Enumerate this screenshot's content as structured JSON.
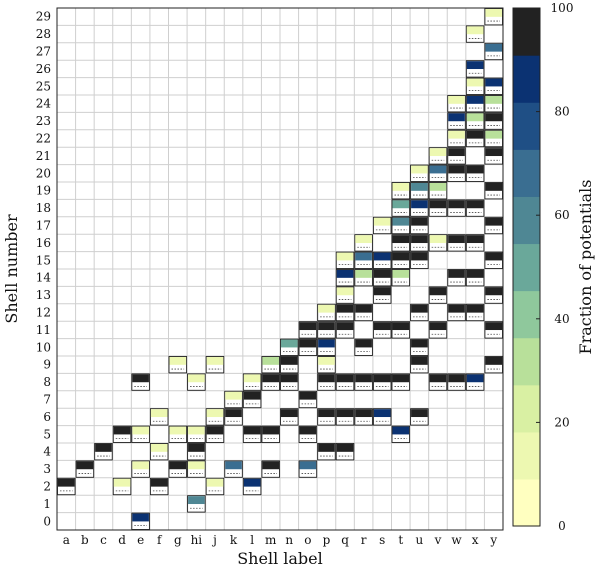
{
  "chart_data": {
    "type": "heatmap",
    "title": "",
    "xlabel": "Shell label",
    "ylabel": "Shell number",
    "colorbar_label": "Fraction of potentials",
    "colorbar_range": [
      0,
      100
    ],
    "colorbar_ticks": [
      0,
      20,
      40,
      60,
      80,
      100
    ],
    "colormap": [
      "#ffffc0",
      "#edf8b1",
      "#d9f0a3",
      "#b8e09a",
      "#8fc89c",
      "#6aa89a",
      "#4f8794",
      "#3a6e91",
      "#1f4f85",
      "#0b3272",
      "#222222"
    ],
    "x_categories": [
      "a",
      "b",
      "c",
      "d",
      "e",
      "f",
      "g",
      "hi",
      "j",
      "k",
      "l",
      "m",
      "n",
      "o",
      "p",
      "q",
      "r",
      "s",
      "t",
      "u",
      "v",
      "w",
      "x",
      "y"
    ],
    "y_categories": [
      "0",
      "1",
      "2",
      "3",
      "4",
      "5",
      "6",
      "7",
      "8",
      "9",
      "10",
      "11",
      "12",
      "13",
      "14",
      "15",
      "16",
      "17",
      "18",
      "19",
      "20",
      "21",
      "22",
      "23",
      "24",
      "25",
      "26",
      "27",
      "28",
      "29"
    ],
    "grid": true,
    "cells": [
      {
        "x": "a",
        "y": "2",
        "value": 100
      },
      {
        "x": "b",
        "y": "3",
        "value": 100
      },
      {
        "x": "c",
        "y": "4",
        "value": 100
      },
      {
        "x": "d",
        "y": "2",
        "value": 8
      },
      {
        "x": "d",
        "y": "5",
        "value": 100
      },
      {
        "x": "e",
        "y": "0",
        "value": 85
      },
      {
        "x": "e",
        "y": "3",
        "value": 6
      },
      {
        "x": "e",
        "y": "5",
        "value": 6
      },
      {
        "x": "e",
        "y": "8",
        "value": 100
      },
      {
        "x": "f",
        "y": "2",
        "value": 100
      },
      {
        "x": "f",
        "y": "4",
        "value": 6
      },
      {
        "x": "f",
        "y": "6",
        "value": 6
      },
      {
        "x": "g",
        "y": "3",
        "value": 100
      },
      {
        "x": "g",
        "y": "5",
        "value": 6
      },
      {
        "x": "g",
        "y": "9",
        "value": 6
      },
      {
        "x": "hi",
        "y": "1",
        "value": 62
      },
      {
        "x": "hi",
        "y": "3",
        "value": 6
      },
      {
        "x": "hi",
        "y": "4",
        "value": 100
      },
      {
        "x": "hi",
        "y": "5",
        "value": 8
      },
      {
        "x": "hi",
        "y": "8",
        "value": 6
      },
      {
        "x": "j",
        "y": "2",
        "value": 6
      },
      {
        "x": "j",
        "y": "5",
        "value": 100
      },
      {
        "x": "j",
        "y": "6",
        "value": 6
      },
      {
        "x": "j",
        "y": "9",
        "value": 6
      },
      {
        "x": "k",
        "y": "3",
        "value": 68
      },
      {
        "x": "k",
        "y": "6",
        "value": 100
      },
      {
        "x": "k",
        "y": "7",
        "value": 6
      },
      {
        "x": "l",
        "y": "2",
        "value": 85
      },
      {
        "x": "l",
        "y": "5",
        "value": 100
      },
      {
        "x": "l",
        "y": "7",
        "value": 100
      },
      {
        "x": "l",
        "y": "8",
        "value": 8
      },
      {
        "x": "m",
        "y": "3",
        "value": 100
      },
      {
        "x": "m",
        "y": "5",
        "value": 100
      },
      {
        "x": "m",
        "y": "8",
        "value": 100
      },
      {
        "x": "m",
        "y": "9",
        "value": 30
      },
      {
        "x": "n",
        "y": "6",
        "value": 100
      },
      {
        "x": "n",
        "y": "8",
        "value": 100
      },
      {
        "x": "n",
        "y": "9",
        "value": 100
      },
      {
        "x": "n",
        "y": "10",
        "value": 45
      },
      {
        "x": "o",
        "y": "3",
        "value": 68
      },
      {
        "x": "o",
        "y": "5",
        "value": 100
      },
      {
        "x": "o",
        "y": "7",
        "value": 100
      },
      {
        "x": "o",
        "y": "10",
        "value": 100
      },
      {
        "x": "o",
        "y": "11",
        "value": 100
      },
      {
        "x": "p",
        "y": "4",
        "value": 100
      },
      {
        "x": "p",
        "y": "6",
        "value": 100
      },
      {
        "x": "p",
        "y": "8",
        "value": 100
      },
      {
        "x": "p",
        "y": "9",
        "value": 8
      },
      {
        "x": "p",
        "y": "10",
        "value": 85
      },
      {
        "x": "p",
        "y": "11",
        "value": 100
      },
      {
        "x": "p",
        "y": "12",
        "value": 8
      },
      {
        "x": "q",
        "y": "4",
        "value": 100
      },
      {
        "x": "q",
        "y": "6",
        "value": 100
      },
      {
        "x": "q",
        "y": "8",
        "value": 100
      },
      {
        "x": "q",
        "y": "11",
        "value": 100
      },
      {
        "x": "q",
        "y": "12",
        "value": 100
      },
      {
        "x": "q",
        "y": "13",
        "value": 8
      },
      {
        "x": "q",
        "y": "14",
        "value": 88
      },
      {
        "x": "q",
        "y": "15",
        "value": 8
      },
      {
        "x": "r",
        "y": "6",
        "value": 100
      },
      {
        "x": "r",
        "y": "8",
        "value": 100
      },
      {
        "x": "r",
        "y": "10",
        "value": 100
      },
      {
        "x": "r",
        "y": "12",
        "value": 100
      },
      {
        "x": "r",
        "y": "14",
        "value": 30
      },
      {
        "x": "r",
        "y": "15",
        "value": 68
      },
      {
        "x": "r",
        "y": "16",
        "value": 8
      },
      {
        "x": "s",
        "y": "6",
        "value": 85
      },
      {
        "x": "s",
        "y": "8",
        "value": 100
      },
      {
        "x": "s",
        "y": "11",
        "value": 100
      },
      {
        "x": "s",
        "y": "13",
        "value": 100
      },
      {
        "x": "s",
        "y": "14",
        "value": 100
      },
      {
        "x": "s",
        "y": "15",
        "value": 88
      },
      {
        "x": "s",
        "y": "17",
        "value": 8
      },
      {
        "x": "t",
        "y": "5",
        "value": 85
      },
      {
        "x": "t",
        "y": "8",
        "value": 100
      },
      {
        "x": "t",
        "y": "11",
        "value": 100
      },
      {
        "x": "t",
        "y": "14",
        "value": 30
      },
      {
        "x": "t",
        "y": "15",
        "value": 100
      },
      {
        "x": "t",
        "y": "16",
        "value": 100
      },
      {
        "x": "t",
        "y": "17",
        "value": 62
      },
      {
        "x": "t",
        "y": "18",
        "value": 45
      },
      {
        "x": "t",
        "y": "19",
        "value": 6
      },
      {
        "x": "u",
        "y": "6",
        "value": 100
      },
      {
        "x": "u",
        "y": "9",
        "value": 100
      },
      {
        "x": "u",
        "y": "10",
        "value": 100
      },
      {
        "x": "u",
        "y": "12",
        "value": 100
      },
      {
        "x": "u",
        "y": "15",
        "value": 100
      },
      {
        "x": "u",
        "y": "16",
        "value": 100
      },
      {
        "x": "u",
        "y": "17",
        "value": 100
      },
      {
        "x": "u",
        "y": "18",
        "value": 90
      },
      {
        "x": "u",
        "y": "19",
        "value": 55
      },
      {
        "x": "u",
        "y": "20",
        "value": 6
      },
      {
        "x": "v",
        "y": "8",
        "value": 100
      },
      {
        "x": "v",
        "y": "11",
        "value": 100
      },
      {
        "x": "v",
        "y": "13",
        "value": 100
      },
      {
        "x": "v",
        "y": "16",
        "value": 8
      },
      {
        "x": "v",
        "y": "18",
        "value": 100
      },
      {
        "x": "v",
        "y": "19",
        "value": 30
      },
      {
        "x": "v",
        "y": "20",
        "value": 68
      },
      {
        "x": "v",
        "y": "21",
        "value": 6
      },
      {
        "x": "w",
        "y": "8",
        "value": 100
      },
      {
        "x": "w",
        "y": "12",
        "value": 100
      },
      {
        "x": "w",
        "y": "14",
        "value": 100
      },
      {
        "x": "w",
        "y": "16",
        "value": 100
      },
      {
        "x": "w",
        "y": "18",
        "value": 100
      },
      {
        "x": "w",
        "y": "20",
        "value": 100
      },
      {
        "x": "w",
        "y": "21",
        "value": 100
      },
      {
        "x": "w",
        "y": "22",
        "value": 8
      },
      {
        "x": "w",
        "y": "23",
        "value": 85
      },
      {
        "x": "w",
        "y": "24",
        "value": 6
      },
      {
        "x": "x",
        "y": "8",
        "value": 88
      },
      {
        "x": "x",
        "y": "12",
        "value": 100
      },
      {
        "x": "x",
        "y": "14",
        "value": 100
      },
      {
        "x": "x",
        "y": "16",
        "value": 100
      },
      {
        "x": "x",
        "y": "18",
        "value": 100
      },
      {
        "x": "x",
        "y": "20",
        "value": 100
      },
      {
        "x": "x",
        "y": "22",
        "value": 100
      },
      {
        "x": "x",
        "y": "23",
        "value": 30
      },
      {
        "x": "x",
        "y": "24",
        "value": 88
      },
      {
        "x": "x",
        "y": "25",
        "value": 8
      },
      {
        "x": "x",
        "y": "26",
        "value": 85
      },
      {
        "x": "x",
        "y": "28",
        "value": 6
      },
      {
        "x": "y",
        "y": "9",
        "value": 100
      },
      {
        "x": "y",
        "y": "11",
        "value": 100
      },
      {
        "x": "y",
        "y": "13",
        "value": 100
      },
      {
        "x": "y",
        "y": "15",
        "value": 100
      },
      {
        "x": "y",
        "y": "17",
        "value": 100
      },
      {
        "x": "y",
        "y": "19",
        "value": 100
      },
      {
        "x": "y",
        "y": "21",
        "value": 100
      },
      {
        "x": "y",
        "y": "22",
        "value": 30
      },
      {
        "x": "y",
        "y": "23",
        "value": 100
      },
      {
        "x": "y",
        "y": "24",
        "value": 30
      },
      {
        "x": "y",
        "y": "25",
        "value": 85
      },
      {
        "x": "y",
        "y": "27",
        "value": 68
      },
      {
        "x": "y",
        "y": "29",
        "value": 8
      }
    ]
  }
}
